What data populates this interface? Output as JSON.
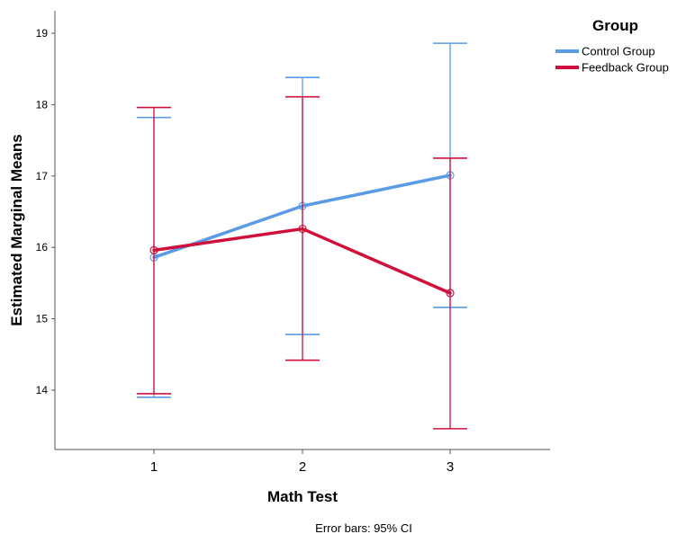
{
  "chart_data": {
    "type": "line",
    "xlabel": "Math Test",
    "ylabel": "Estimated Marginal Means",
    "categories": [
      "1",
      "2",
      "3"
    ],
    "yticks": [
      14,
      15,
      16,
      17,
      18,
      19
    ],
    "ylim": [
      13.2,
      19.3
    ],
    "grid": false,
    "legend": {
      "title": "Group",
      "position": "top-right"
    },
    "note": "Error bars: 95% CI",
    "series": [
      {
        "name": "Control Group",
        "color": "#5b9ae4",
        "values": [
          15.86,
          16.58,
          17.01
        ],
        "ci_lower": [
          13.9,
          14.78,
          15.16
        ],
        "ci_upper": [
          17.82,
          18.38,
          18.86
        ]
      },
      {
        "name": "Feedback Group",
        "color": "#d0103a",
        "values": [
          15.96,
          16.26,
          15.36
        ],
        "ci_lower": [
          13.95,
          14.42,
          13.46
        ],
        "ci_upper": [
          17.96,
          18.11,
          17.25
        ]
      }
    ]
  }
}
